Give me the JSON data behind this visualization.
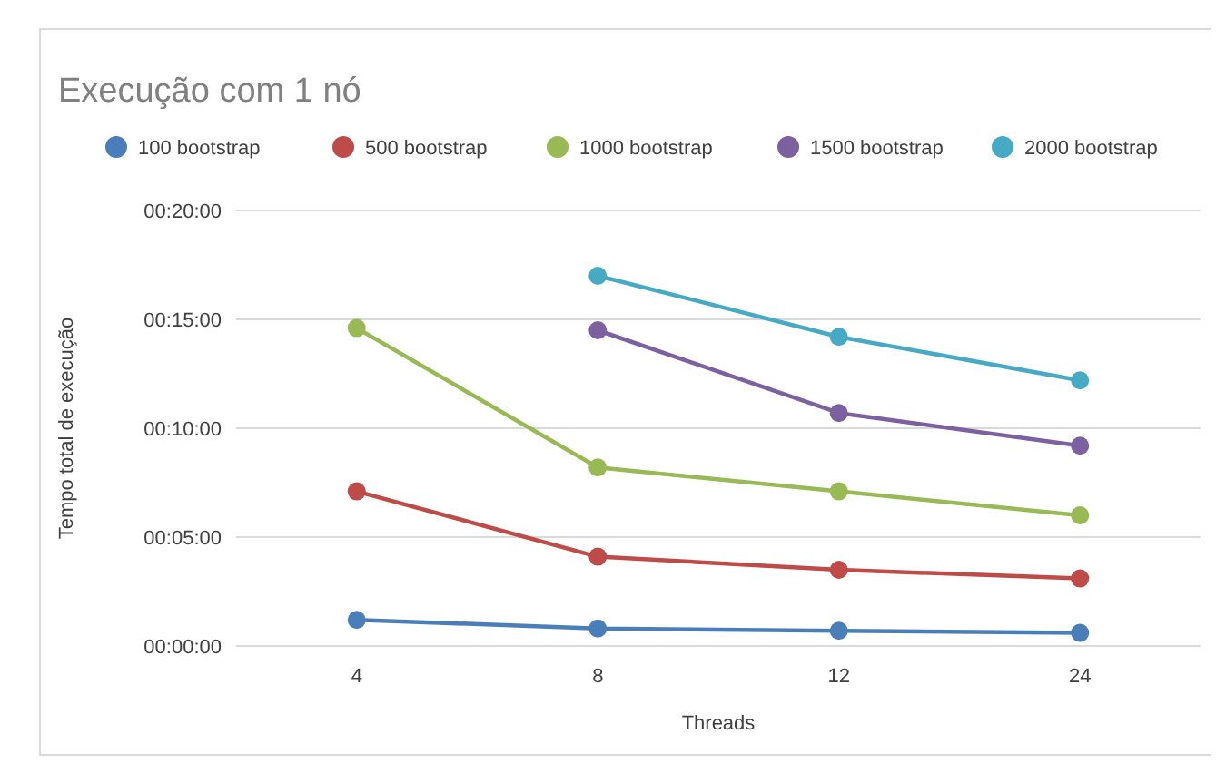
{
  "chart_data": {
    "type": "line",
    "title": "Execução com 1 nó",
    "xlabel": "Threads",
    "ylabel": "Tempo total de execução",
    "categories": [
      "4",
      "8",
      "12",
      "24"
    ],
    "series": [
      {
        "name": "100 bootstrap",
        "color": "#4a7ebb",
        "values": [
          1.2,
          0.8,
          0.7,
          0.6
        ]
      },
      {
        "name": "500 bootstrap",
        "color": "#be4b48",
        "values": [
          7.1,
          4.1,
          3.5,
          3.1
        ]
      },
      {
        "name": "1000 bootstrap",
        "color": "#98b954",
        "values": [
          14.6,
          8.2,
          7.1,
          6.0
        ]
      },
      {
        "name": "1500 bootstrap",
        "color": "#7d60a0",
        "values": [
          null,
          14.5,
          10.7,
          9.2
        ]
      },
      {
        "name": "2000 bootstrap",
        "color": "#46aac5",
        "values": [
          null,
          17.0,
          14.2,
          12.2
        ]
      }
    ],
    "ylim": [
      0,
      20
    ],
    "yticks": [
      {
        "value": 0,
        "label": "00:00:00"
      },
      {
        "value": 5,
        "label": "00:05:00"
      },
      {
        "value": 10,
        "label": "00:10:00"
      },
      {
        "value": 15,
        "label": "00:15:00"
      },
      {
        "value": 20,
        "label": "00:20:00"
      }
    ],
    "grid": "y",
    "legend": "top",
    "marker": "circle",
    "line_style": "solid"
  }
}
